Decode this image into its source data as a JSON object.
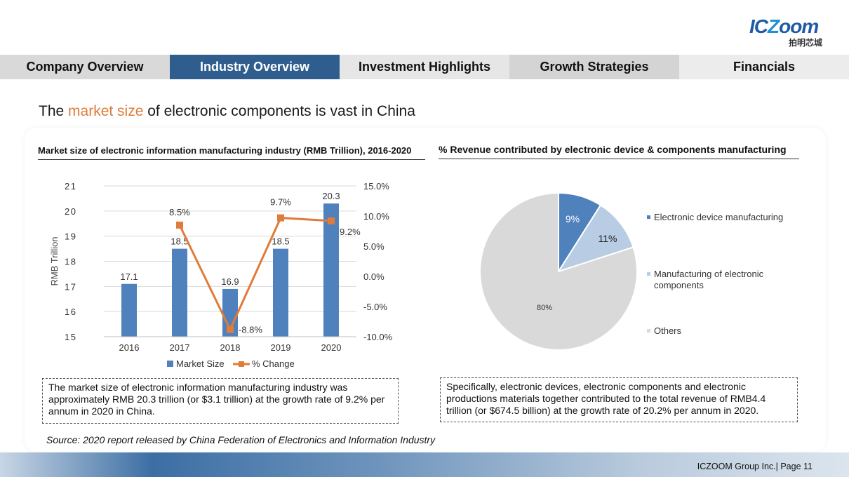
{
  "logo": {
    "text_ic": "IC",
    "text_z": "Z",
    "text_oom": "oom",
    "text_cn": "拍明芯城"
  },
  "nav": {
    "tabs": [
      {
        "label": "Company Overview"
      },
      {
        "label": "Industry Overview"
      },
      {
        "label": "Investment Highlights"
      },
      {
        "label": "Growth Strategies"
      },
      {
        "label": "Financials"
      }
    ]
  },
  "headline": {
    "before": "The ",
    "highlight": "market size",
    "after": " of electronic components is vast in China"
  },
  "left_title": "Market size of electronic information manufacturing industry (RMB Trillion), 2016-2020",
  "right_title": "% Revenue contributed by electronic device & components manufacturing",
  "colors": {
    "bar": "#4f81bd",
    "line": "#e07b39",
    "pie1": "#4f81bd",
    "pie2": "#b8cce4",
    "pie3": "#d9d9d9",
    "active_tab": "#2f5e8e",
    "highlight": "#e07b39"
  },
  "chart_data": [
    {
      "type": "bar",
      "categories": [
        "2016",
        "2017",
        "2018",
        "2019",
        "2020"
      ],
      "series": [
        {
          "name": "Market Size",
          "type": "bar",
          "values": [
            17.1,
            18.5,
            16.9,
            18.5,
            20.3
          ],
          "axis": "left"
        },
        {
          "name": "% Change",
          "type": "line",
          "values": [
            null,
            8.5,
            -8.8,
            9.7,
            9.2
          ],
          "axis": "right",
          "labels": [
            "",
            "8.5%",
            "-8.8%",
            "9.7%",
            "9.2%"
          ]
        }
      ],
      "value_labels": [
        "17.1",
        "18.5",
        "16.9",
        "18.5",
        "20.3"
      ],
      "ylabel": "RMB Trillion",
      "ylim_left": [
        15,
        21
      ],
      "yticks_left": [
        "21",
        "20",
        "19",
        "18",
        "17",
        "16",
        "15"
      ],
      "ylim_right": [
        -10,
        15
      ],
      "yticks_right": [
        "15.0%",
        "10.0%",
        "5.0%",
        "0.0%",
        "-5.0%",
        "-10.0%"
      ],
      "legend": [
        "Market Size",
        "% Change"
      ],
      "legend_position": "bottom",
      "grid": true
    },
    {
      "type": "pie",
      "categories": [
        "Electronic device manufacturing",
        "Manufacturing of electronic components",
        "Others"
      ],
      "values": [
        9,
        11,
        80
      ],
      "labels": [
        "9%",
        "11%",
        "80%"
      ],
      "legend_position": "right"
    }
  ],
  "notes": {
    "left": "The market size of electronic information manufacturing industry was approximately RMB 20.3 trillion (or $3.1 trillion) at the growth rate of 9.2% per annum in 2020 in China.",
    "right": "Specifically, electronic devices, electronic components and electronic productions materials together contributed to the total revenue of RMB4.4 trillion (or $674.5 billion) at the growth rate of 20.2% per annum in 2020."
  },
  "source": "Source: 2020 report released by China Federation of Electronics and Information Industry",
  "footer": "ICZOOM Group Inc.| Page 11"
}
